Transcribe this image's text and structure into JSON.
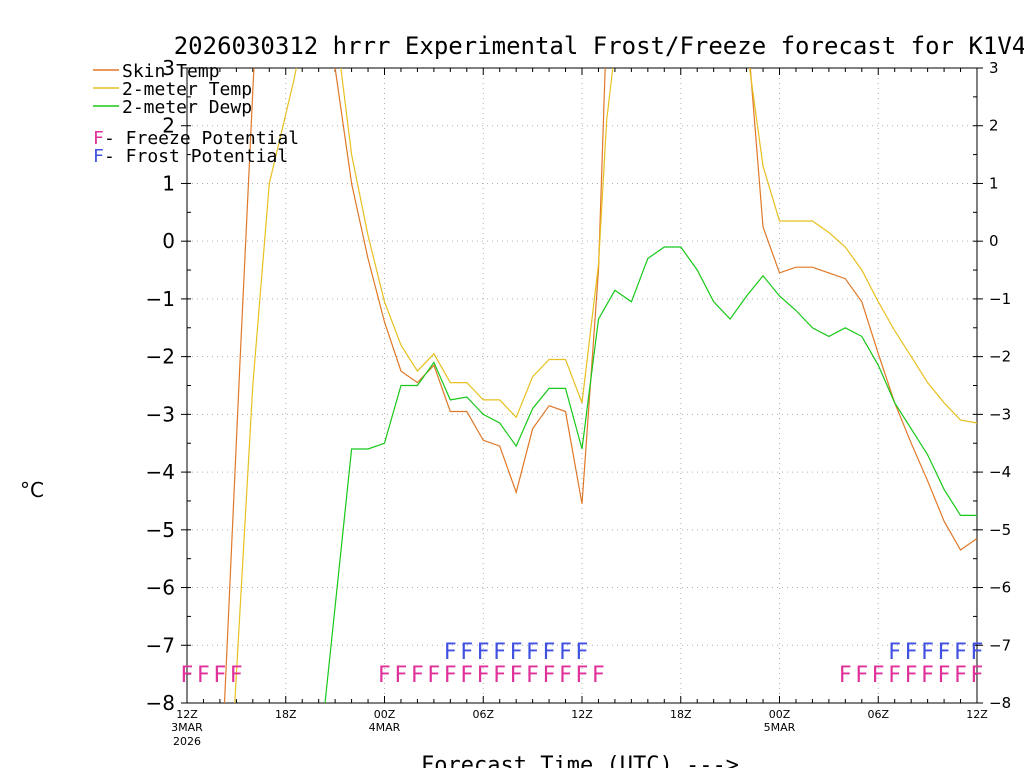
{
  "chart_data": {
    "type": "line",
    "title": "2026030312 hrrr Experimental Frost/Freeze forecast for K1V4",
    "xlabel": "Forecast Time (UTC) --->",
    "ylabel": "°C",
    "ylim": [
      -8,
      3
    ],
    "yticks": [
      -8,
      -7,
      -6,
      -5,
      -4,
      -3,
      -2,
      -1,
      0,
      1,
      2,
      3
    ],
    "ytick_labels": [
      "−8",
      "−7",
      "−6",
      "−5",
      "−4",
      "−3",
      "−2",
      "−1",
      "0",
      "1",
      "2",
      "3"
    ],
    "xlim": [
      0,
      48
    ],
    "xticks": [
      {
        "x": 0,
        "label": "12Z",
        "sub1": "3MAR",
        "sub2": "2026"
      },
      {
        "x": 6,
        "label": "18Z",
        "sub1": "",
        "sub2": ""
      },
      {
        "x": 12,
        "label": "00Z",
        "sub1": "4MAR",
        "sub2": ""
      },
      {
        "x": 18,
        "label": "06Z",
        "sub1": "",
        "sub2": ""
      },
      {
        "x": 24,
        "label": "12Z",
        "sub1": "",
        "sub2": ""
      },
      {
        "x": 30,
        "label": "18Z",
        "sub1": "",
        "sub2": ""
      },
      {
        "x": 36,
        "label": "00Z",
        "sub1": "5MAR",
        "sub2": ""
      },
      {
        "x": 42,
        "label": "06Z",
        "sub1": "",
        "sub2": ""
      },
      {
        "x": 48,
        "label": "12Z",
        "sub1": "",
        "sub2": ""
      }
    ],
    "legend": [
      {
        "label": "Skin Temp",
        "color": "#e07828"
      },
      {
        "label": "2-meter Temp",
        "color": "#e8c020"
      },
      {
        "label": "2-meter Dewp",
        "color": "#18c818"
      }
    ],
    "markers_legend": [
      {
        "symbol": "F",
        "label": " - Freeze Potential",
        "color": "#e0309a"
      },
      {
        "symbol": "F",
        "label": " - Frost Potential",
        "color": "#4050e0"
      }
    ],
    "series": [
      {
        "name": "Skin Temp",
        "color": "#e07828",
        "points": [
          [
            2.2,
            -8.5
          ],
          [
            3.2,
            -2.2
          ],
          [
            4.2,
            3.8
          ],
          [
            8.9,
            3.8
          ],
          [
            9,
            3
          ],
          [
            10,
            1
          ],
          [
            11,
            -0.3
          ],
          [
            12,
            -1.4
          ],
          [
            13,
            -2.25
          ],
          [
            14,
            -2.45
          ],
          [
            15,
            -2.15
          ],
          [
            16,
            -2.95
          ],
          [
            17,
            -2.95
          ],
          [
            18,
            -3.45
          ],
          [
            19,
            -3.55
          ],
          [
            20,
            -4.35
          ],
          [
            21,
            -3.25
          ],
          [
            22,
            -2.85
          ],
          [
            23,
            -2.95
          ],
          [
            24,
            -4.55
          ],
          [
            25,
            -0.5
          ],
          [
            25.5,
            3.8
          ],
          [
            34,
            3.8
          ],
          [
            35,
            0.25
          ],
          [
            36,
            -0.55
          ],
          [
            37,
            -0.45
          ],
          [
            38,
            -0.45
          ],
          [
            39,
            -0.55
          ],
          [
            40,
            -0.65
          ],
          [
            41,
            -1.05
          ],
          [
            42,
            -1.95
          ],
          [
            43,
            -2.8
          ],
          [
            44,
            -3.5
          ],
          [
            45,
            -4.15
          ],
          [
            46,
            -4.85
          ],
          [
            47,
            -5.35
          ],
          [
            48,
            -5.15
          ]
        ]
      },
      {
        "name": "2-meter Temp",
        "color": "#e8c020",
        "points": [
          [
            2.8,
            -8.5
          ],
          [
            4,
            -2.5
          ],
          [
            5,
            1
          ],
          [
            6.5,
            2.8
          ],
          [
            7.2,
            3.8
          ],
          [
            9,
            3.8
          ],
          [
            10,
            1.5
          ],
          [
            11,
            0.1
          ],
          [
            12,
            -1.05
          ],
          [
            13,
            -1.8
          ],
          [
            14,
            -2.25
          ],
          [
            15,
            -1.95
          ],
          [
            16,
            -2.45
          ],
          [
            17,
            -2.45
          ],
          [
            18,
            -2.75
          ],
          [
            19,
            -2.75
          ],
          [
            20,
            -3.05
          ],
          [
            21,
            -2.35
          ],
          [
            22,
            -2.05
          ],
          [
            23,
            -2.05
          ],
          [
            24,
            -2.8
          ],
          [
            25,
            -0.4
          ],
          [
            25.5,
            2.1
          ],
          [
            26.2,
            3.8
          ],
          [
            33.8,
            3.8
          ],
          [
            35,
            1.3
          ],
          [
            36,
            0.35
          ],
          [
            37,
            0.35
          ],
          [
            38,
            0.35
          ],
          [
            39,
            0.15
          ],
          [
            40,
            -0.1
          ],
          [
            41,
            -0.5
          ],
          [
            42,
            -1.05
          ],
          [
            43,
            -1.55
          ],
          [
            44,
            -2.0
          ],
          [
            45,
            -2.45
          ],
          [
            46,
            -2.8
          ],
          [
            47,
            -3.1
          ],
          [
            48,
            -3.15
          ]
        ]
      },
      {
        "name": "2-meter Dewp",
        "color": "#18c818",
        "points": [
          [
            8.2,
            -8.5
          ],
          [
            10,
            -3.6
          ],
          [
            11,
            -3.6
          ],
          [
            12,
            -3.5
          ],
          [
            13,
            -2.5
          ],
          [
            14,
            -2.5
          ],
          [
            15,
            -2.1
          ],
          [
            16,
            -2.75
          ],
          [
            17,
            -2.7
          ],
          [
            18,
            -3.0
          ],
          [
            19,
            -3.15
          ],
          [
            20,
            -3.55
          ],
          [
            21,
            -2.9
          ],
          [
            22,
            -2.55
          ],
          [
            23,
            -2.55
          ],
          [
            24,
            -3.6
          ],
          [
            25,
            -1.35
          ],
          [
            26,
            -0.85
          ],
          [
            27,
            -1.05
          ],
          [
            28,
            -0.3
          ],
          [
            29,
            -0.1
          ],
          [
            30,
            -0.1
          ],
          [
            31,
            -0.5
          ],
          [
            32,
            -1.05
          ],
          [
            33,
            -1.35
          ],
          [
            34,
            -0.95
          ],
          [
            35,
            -0.6
          ],
          [
            36,
            -0.95
          ],
          [
            37,
            -1.2
          ],
          [
            38,
            -1.5
          ],
          [
            39,
            -1.65
          ],
          [
            40,
            -1.5
          ],
          [
            41,
            -1.65
          ],
          [
            42,
            -2.15
          ],
          [
            43,
            -2.8
          ],
          [
            44,
            -3.25
          ],
          [
            45,
            -3.7
          ],
          [
            46,
            -4.3
          ],
          [
            47,
            -4.75
          ],
          [
            48,
            -4.75
          ]
        ]
      }
    ],
    "freeze_potential": {
      "symbol": "F",
      "color": "#e0309a",
      "y": -7.5,
      "times": [
        0,
        1,
        2,
        3,
        12,
        13,
        14,
        15,
        16,
        17,
        18,
        19,
        20,
        21,
        22,
        23,
        24,
        25,
        40,
        41,
        42,
        43,
        44,
        45,
        46,
        47,
        48
      ]
    },
    "frost_potential": {
      "symbol": "F",
      "color": "#4050e0",
      "y": -7.1,
      "times": [
        16,
        17,
        18,
        19,
        20,
        21,
        22,
        23,
        24,
        43,
        44,
        45,
        46,
        47,
        48
      ]
    }
  }
}
